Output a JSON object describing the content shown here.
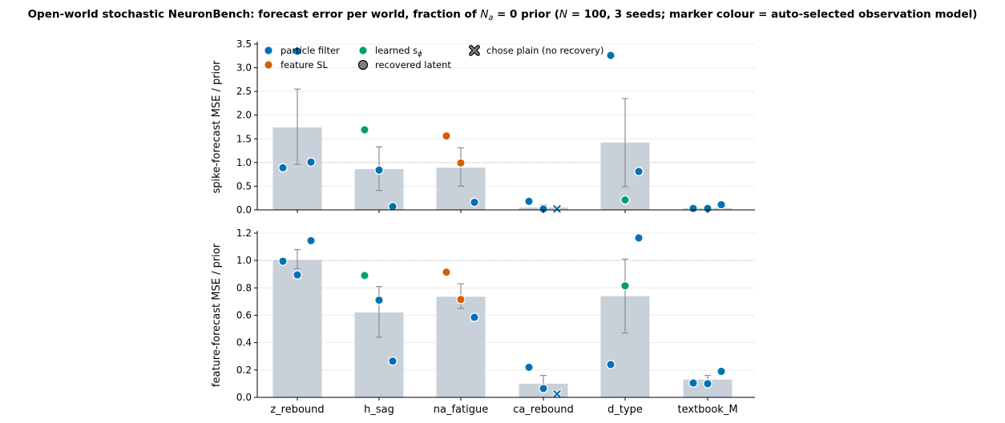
{
  "figure": {
    "title_prefix": "Open-world stochastic NeuronBench: forecast error per world, fraction of ",
    "title_na": "N",
    "title_na_sub": "a",
    "title_mid": " = 0 prior (",
    "title_n": "N",
    "title_suffix": " = 100, 3 seeds; marker colour = auto-selected observation model)"
  },
  "colors": {
    "bar": "#c8d0da",
    "error": "#8c8c8c",
    "grid": "#ececec",
    "reference": "#c8c8c8",
    "particle_filter": "#0072b2",
    "feature_sl": "#d55e00",
    "learned_s": "#009e73",
    "recovered": "#808080"
  },
  "legend": {
    "items": [
      {
        "key": "particle_filter",
        "label": "particle filter",
        "marker": "dot"
      },
      {
        "key": "feature_sl",
        "label": "feature SL",
        "marker": "dot"
      },
      {
        "key": "learned_s",
        "label": "learned s",
        "sub": "ϕ",
        "marker": "dot"
      },
      {
        "key": "recovered",
        "label": "recovered latent",
        "marker": "dot-outline"
      },
      {
        "key": "plain",
        "label": "chose plain (no recovery)",
        "marker": "x"
      }
    ]
  },
  "chart_data": [
    {
      "type": "bar",
      "ylabel": "spike-forecast MSE / prior",
      "ylim": [
        0,
        3.5
      ],
      "yticks": [
        "0.0",
        "0.5",
        "1.0",
        "1.5",
        "2.0",
        "2.5",
        "3.0",
        "3.5"
      ],
      "reference_line": 1.0,
      "categories": [
        "z_rebound",
        "h_sag",
        "na_fatigue",
        "ca_rebound",
        "d_type",
        "textbook_M"
      ],
      "bar_values": [
        1.74,
        0.86,
        0.89,
        0.05,
        1.42,
        0.04
      ],
      "error_low": [
        0.96,
        0.41,
        0.5,
        0.01,
        0.49,
        0.01
      ],
      "error_high": [
        2.55,
        1.33,
        1.31,
        0.11,
        2.35,
        0.08
      ],
      "points": [
        [
          {
            "y": 0.89,
            "model": "particle_filter"
          },
          {
            "y": 3.35,
            "model": "particle_filter"
          },
          {
            "y": 1.01,
            "model": "particle_filter"
          }
        ],
        [
          {
            "y": 1.69,
            "model": "learned_s"
          },
          {
            "y": 0.84,
            "model": "particle_filter"
          },
          {
            "y": 0.07,
            "model": "particle_filter"
          }
        ],
        [
          {
            "y": 1.56,
            "model": "feature_sl"
          },
          {
            "y": 0.99,
            "model": "feature_sl"
          },
          {
            "y": 0.16,
            "model": "particle_filter"
          }
        ],
        [
          {
            "y": 0.18,
            "model": "particle_filter"
          },
          {
            "y": 0.02,
            "model": "particle_filter"
          },
          {
            "y": 0.02,
            "model": "plain"
          }
        ],
        [
          {
            "y": 3.26,
            "model": "particle_filter"
          },
          {
            "y": 0.21,
            "model": "learned_s"
          },
          {
            "y": 0.81,
            "model": "particle_filter"
          }
        ],
        [
          {
            "y": 0.03,
            "model": "particle_filter"
          },
          {
            "y": 0.03,
            "model": "particle_filter"
          },
          {
            "y": 0.11,
            "model": "particle_filter"
          }
        ]
      ]
    },
    {
      "type": "bar",
      "ylabel": "feature-forecast MSE / prior",
      "ylim": [
        0,
        1.22
      ],
      "yticks": [
        "0.0",
        "0.2",
        "0.4",
        "0.6",
        "0.8",
        "1.0",
        "1.2"
      ],
      "reference_line": 1.0,
      "categories": [
        "z_rebound",
        "h_sag",
        "na_fatigue",
        "ca_rebound",
        "d_type",
        "textbook_M"
      ],
      "bar_values": [
        1.005,
        0.62,
        0.735,
        0.1,
        0.74,
        0.13
      ],
      "error_low": [
        0.94,
        0.44,
        0.65,
        0.05,
        0.47,
        0.095
      ],
      "error_high": [
        1.08,
        0.81,
        0.83,
        0.16,
        1.01,
        0.16
      ],
      "points": [
        [
          {
            "y": 0.995,
            "model": "particle_filter"
          },
          {
            "y": 0.895,
            "model": "particle_filter"
          },
          {
            "y": 1.145,
            "model": "particle_filter"
          }
        ],
        [
          {
            "y": 0.89,
            "model": "learned_s"
          },
          {
            "y": 0.71,
            "model": "particle_filter"
          },
          {
            "y": 0.265,
            "model": "particle_filter"
          }
        ],
        [
          {
            "y": 0.915,
            "model": "feature_sl"
          },
          {
            "y": 0.715,
            "model": "feature_sl"
          },
          {
            "y": 0.585,
            "model": "particle_filter"
          }
        ],
        [
          {
            "y": 0.22,
            "model": "particle_filter"
          },
          {
            "y": 0.065,
            "model": "particle_filter"
          },
          {
            "y": 0.025,
            "model": "plain"
          }
        ],
        [
          {
            "y": 0.24,
            "model": "particle_filter"
          },
          {
            "y": 0.815,
            "model": "learned_s"
          },
          {
            "y": 1.165,
            "model": "particle_filter"
          }
        ],
        [
          {
            "y": 0.105,
            "model": "particle_filter"
          },
          {
            "y": 0.1,
            "model": "particle_filter"
          },
          {
            "y": 0.19,
            "model": "particle_filter"
          }
        ]
      ]
    }
  ]
}
